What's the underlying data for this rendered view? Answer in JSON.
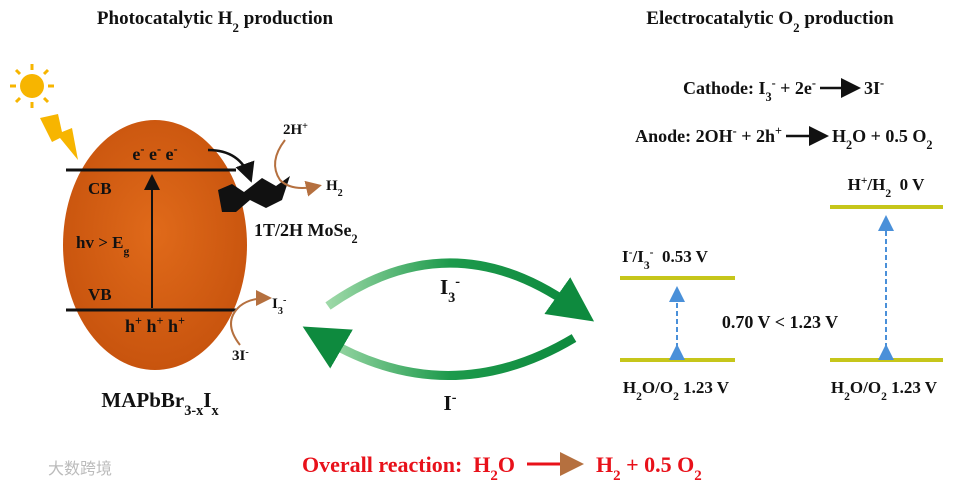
{
  "texts": {
    "title_left": [
      "Photocatalytic H",
      "2",
      " production"
    ],
    "title_right": [
      "Electrocatalytic O",
      "2",
      " production"
    ],
    "cathode_left": [
      "Cathode: I",
      "3",
      "-",
      " + 2e",
      "-"
    ],
    "cathode_right": [
      "3I",
      "-"
    ],
    "anode_left": [
      "Anode: 2OH",
      "-",
      " + 2h",
      "+"
    ],
    "anode_right": [
      "H",
      "2",
      "O + 0.5 O",
      "2"
    ],
    "h_level": [
      "H",
      "+",
      "/H",
      "2",
      "  0 V"
    ],
    "i_level": [
      "I",
      "-",
      "/I",
      "3",
      "-",
      "  0.53 V"
    ],
    "gap": [
      "0.70 V < 1.23 V"
    ],
    "o_level_left": [
      "H",
      "2",
      "O/O",
      "2",
      " 1.23 V"
    ],
    "o_level_right": [
      "H",
      "2",
      "O/O",
      "2",
      " 1.23 V"
    ],
    "h_plus": [
      "2H",
      "+"
    ],
    "h2": [
      "H",
      "2"
    ],
    "mose2": [
      "1T/2H MoSe",
      "2"
    ],
    "electrons": [
      "e",
      "-",
      " e",
      "-",
      " e",
      "-"
    ],
    "cb": [
      "CB"
    ],
    "hv": [
      "hv > E",
      "g"
    ],
    "vb": [
      "VB"
    ],
    "holes": [
      "h",
      "+",
      " h",
      "+",
      " h",
      "+"
    ],
    "i3_small": [
      "I",
      "3",
      "-"
    ],
    "i_small": [
      "3I",
      "-"
    ],
    "material": [
      "MAPbBr",
      "3-x",
      "I",
      "x"
    ],
    "cycle_top": [
      "I",
      "3",
      "-"
    ],
    "cycle_bottom": [
      "I",
      "-"
    ],
    "overall_left": [
      "Overall reaction:  H",
      "2",
      "O"
    ],
    "overall_right": [
      "H",
      "2",
      " + 0.5 O",
      "2"
    ],
    "watermark": [
      "大数跨境"
    ]
  }
}
